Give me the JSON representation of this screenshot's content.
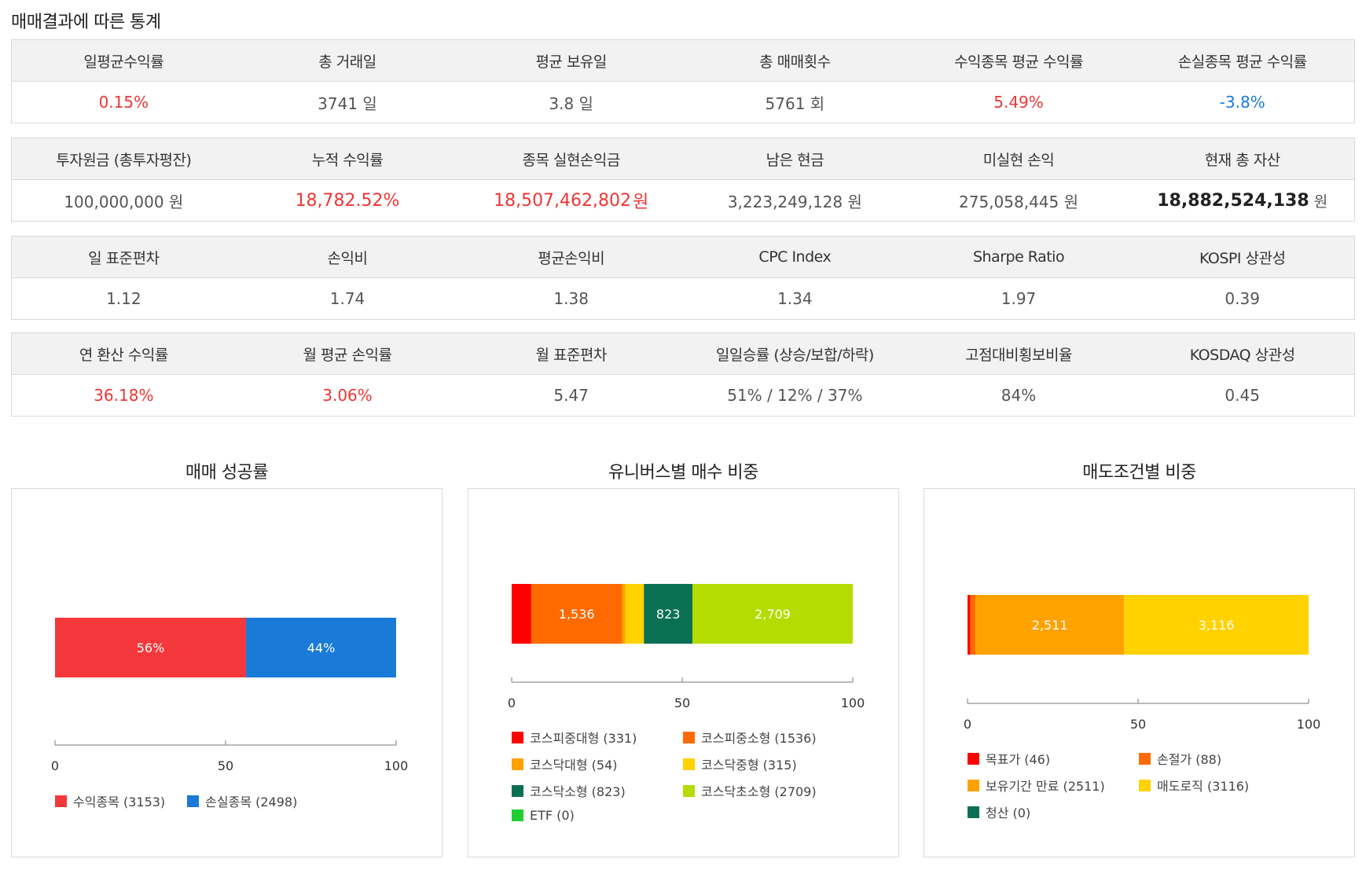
{
  "page_title": "매매결과에 따른 통계",
  "stat_tables": [
    {
      "headers": [
        "일평균수익률",
        "총 거래일",
        "평균 보유일",
        "총 매매횟수",
        "수익종목 평균 수익률",
        "손실종목 평균 수익률"
      ],
      "values": [
        "0.15%",
        "3741 일",
        "3.8 일",
        "5761 회",
        "5.49%",
        "-3.8%"
      ]
    },
    {
      "headers": [
        "투자원금 (총투자평잔)",
        "누적 수익률",
        "종목 실현손익금",
        "남은 현금",
        "미실현 손익",
        "현재 총 자산"
      ],
      "values": [
        "100,000,000 원",
        "18,782.52%",
        "18,507,462,802",
        "3,223,249,128 원",
        "275,058,445 원",
        "18,882,524,138"
      ],
      "value_units": [
        "",
        "",
        "원",
        "",
        "",
        "원"
      ]
    },
    {
      "headers": [
        "일 표준편차",
        "손익비",
        "평균손익비",
        "CPC Index",
        "Sharpe Ratio",
        "KOSPI 상관성"
      ],
      "values": [
        "1.12",
        "1.74",
        "1.38",
        "1.34",
        "1.97",
        "0.39"
      ]
    },
    {
      "headers": [
        "연 환산 수익률",
        "월 평균 손익률",
        "월 표준편차",
        "일일승률 (상승/보합/하락)",
        "고점대비횡보비율",
        "KOSDAQ 상관성"
      ],
      "values": [
        "36.18%",
        "3.06%",
        "5.47",
        "51% / 12% / 37%",
        "84%",
        "0.45"
      ]
    }
  ],
  "colors": {
    "positive": "#ef3535",
    "negative": "#1a7ad8"
  },
  "chart_data": [
    {
      "type": "bar",
      "orientation": "horizontal-stacked",
      "title": "매매 성공률",
      "xlim": [
        0,
        100
      ],
      "ticks": [
        "0",
        "50",
        "100"
      ],
      "series": [
        {
          "name": "수익종목",
          "count": 3153,
          "percent": 56,
          "label": "56%",
          "color": "#f5383b"
        },
        {
          "name": "손실종목",
          "count": 2498,
          "percent": 44,
          "label": "44%",
          "color": "#1a7ad8"
        }
      ],
      "legend": [
        "수익종목 (3153)",
        "손실종목 (2498)"
      ]
    },
    {
      "type": "bar",
      "orientation": "horizontal-stacked",
      "title": "유니버스별 매수 비중",
      "xlim": [
        0,
        100
      ],
      "ticks": [
        "0",
        "50",
        "100"
      ],
      "series": [
        {
          "name": "코스피중대형",
          "count": 331,
          "label": "",
          "color": "#ff0000"
        },
        {
          "name": "코스피중소형",
          "count": 1536,
          "label": "1,536",
          "color": "#ff6a00"
        },
        {
          "name": "코스닥대형",
          "count": 54,
          "label": "",
          "color": "#ffa200"
        },
        {
          "name": "코스닥중형",
          "count": 315,
          "label": "",
          "color": "#ffd200"
        },
        {
          "name": "코스닥소형",
          "count": 823,
          "label": "823",
          "color": "#0b7052"
        },
        {
          "name": "코스닥초소형",
          "count": 2709,
          "label": "2,709",
          "color": "#b4dc00"
        },
        {
          "name": "ETF",
          "count": 0,
          "label": "",
          "color": "#22cc33"
        }
      ],
      "legend": [
        "코스피중대형 (331)",
        "코스피중소형 (1536)",
        "코스닥대형 (54)",
        "코스닥중형 (315)",
        "코스닥소형 (823)",
        "코스닥초소형 (2709)",
        "ETF (0)"
      ]
    },
    {
      "type": "bar",
      "orientation": "horizontal-stacked",
      "title": "매도조건별 비중",
      "xlim": [
        0,
        100
      ],
      "ticks": [
        "0",
        "50",
        "100"
      ],
      "series": [
        {
          "name": "목표가",
          "count": 46,
          "label": "",
          "color": "#ff0000"
        },
        {
          "name": "손절가",
          "count": 88,
          "label": "",
          "color": "#ff6a00"
        },
        {
          "name": "보유기간 만료",
          "count": 2511,
          "label": "2,511",
          "color": "#ffa200"
        },
        {
          "name": "매도로직",
          "count": 3116,
          "label": "3,116",
          "color": "#ffd200"
        },
        {
          "name": "청산",
          "count": 0,
          "label": "",
          "color": "#0b7052"
        }
      ],
      "legend": [
        "목표가 (46)",
        "손절가 (88)",
        "보유기간 만료 (2511)",
        "매도로직 (3116)",
        "청산 (0)"
      ]
    }
  ]
}
